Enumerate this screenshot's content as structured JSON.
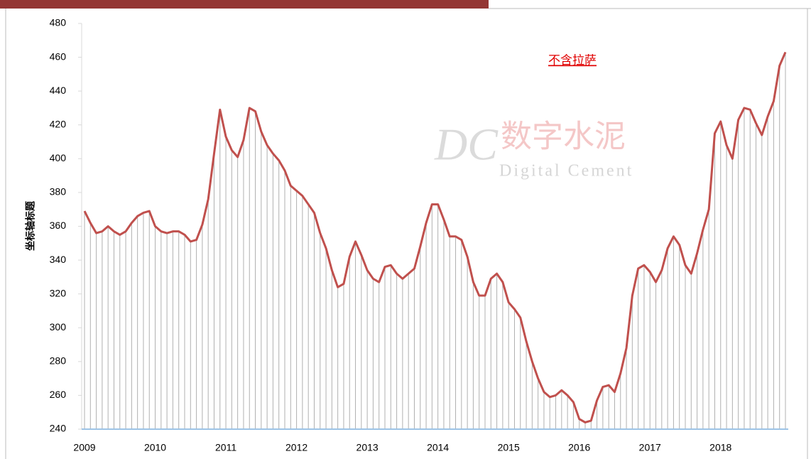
{
  "chart_data": {
    "type": "line",
    "y_axis_label": "坐标轴标题",
    "annotation": "不含拉萨",
    "watermark": {
      "logo": "DC",
      "name": "数字水泥",
      "name_en": "Digital Cement"
    },
    "categories": [
      "2009",
      null,
      null,
      null,
      null,
      null,
      null,
      null,
      null,
      null,
      null,
      null,
      "2010",
      null,
      null,
      null,
      null,
      null,
      null,
      null,
      null,
      null,
      null,
      null,
      "2011",
      null,
      null,
      null,
      null,
      null,
      null,
      null,
      null,
      null,
      null,
      null,
      "2012",
      null,
      null,
      null,
      null,
      null,
      null,
      null,
      null,
      null,
      null,
      null,
      "2013",
      null,
      null,
      null,
      null,
      null,
      null,
      null,
      null,
      null,
      null,
      null,
      "2014",
      null,
      null,
      null,
      null,
      null,
      null,
      null,
      null,
      null,
      null,
      null,
      "2015",
      null,
      null,
      null,
      null,
      null,
      null,
      null,
      null,
      null,
      null,
      null,
      "2016",
      null,
      null,
      null,
      null,
      null,
      null,
      null,
      null,
      null,
      null,
      null,
      "2017",
      null,
      null,
      null,
      null,
      null,
      null,
      null,
      null,
      null,
      null,
      null,
      "2018",
      null,
      null,
      null,
      null,
      null,
      null,
      null,
      null,
      null,
      null,
      null
    ],
    "values": [
      369,
      362,
      356,
      357,
      360,
      357,
      355,
      357,
      362,
      366,
      368,
      369,
      360,
      357,
      356,
      357,
      357,
      355,
      351,
      352,
      361,
      376,
      403,
      429,
      413,
      405,
      401,
      411,
      430,
      428,
      416,
      408,
      403,
      399,
      393,
      384,
      381,
      378,
      373,
      368,
      356,
      347,
      334,
      324,
      326,
      342,
      351,
      343,
      334,
      329,
      327,
      336,
      337,
      332,
      329,
      332,
      335,
      348,
      362,
      373,
      373,
      364,
      354,
      354,
      352,
      342,
      327,
      319,
      319,
      329,
      332,
      327,
      315,
      311,
      306,
      292,
      280,
      270,
      262,
      259,
      260,
      263,
      260,
      256,
      246,
      244,
      245,
      257,
      265,
      266,
      262,
      273,
      288,
      319,
      335,
      337,
      333,
      327,
      334,
      347,
      354,
      349,
      337,
      332,
      344,
      358,
      370,
      415,
      422,
      408,
      400,
      423,
      430,
      429,
      421,
      414,
      425,
      434,
      455,
      463
    ],
    "color": "#c0504d",
    "drop_line_color": "#b0b0b0",
    "ylim": [
      240,
      480
    ],
    "yticks": [
      240,
      260,
      280,
      300,
      320,
      340,
      360,
      380,
      400,
      420,
      440,
      460,
      480
    ]
  }
}
